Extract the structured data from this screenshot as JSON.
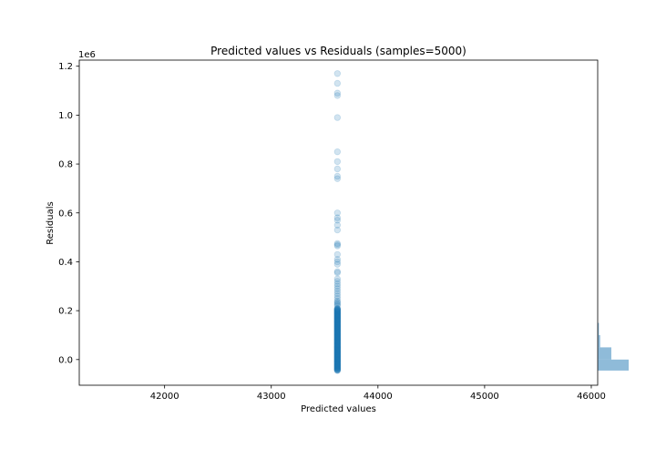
{
  "chart_data": {
    "type": "scatter",
    "title": "Predicted values vs Residuals (samples=5000)",
    "xlabel": "Predicted values",
    "ylabel": "Residuals",
    "y_offset_label": "1e6",
    "xlim": [
      41200,
      46060
    ],
    "ylim": [
      -0.105,
      1.225
    ],
    "x_scale_units": 1,
    "y_scale_units": 1000000,
    "x_ticks": [
      42000,
      43000,
      44000,
      45000,
      46000
    ],
    "y_ticks": [
      0.0,
      0.2,
      0.4,
      0.6,
      0.8,
      1.0,
      1.2
    ],
    "x_tick_labels": [
      "42000",
      "43000",
      "44000",
      "45000",
      "46000"
    ],
    "y_tick_labels": [
      "0.0",
      "0.2",
      "0.4",
      "0.6",
      "0.8",
      "1.0",
      "1.2"
    ],
    "grid": false,
    "point_color": "#1f77b4",
    "point_alpha": 0.2,
    "series": [
      {
        "x_constant": 43620,
        "residual_outliers_1e6": [
          1.17,
          1.13,
          1.09,
          1.08,
          0.99,
          0.85,
          0.81,
          0.78,
          0.75,
          0.74,
          0.6,
          0.58,
          0.57,
          0.55,
          0.53,
          0.475,
          0.47,
          0.465,
          0.43,
          0.41,
          0.4,
          0.39,
          0.36,
          0.355,
          0.33,
          0.32,
          0.31,
          0.3,
          0.29,
          0.28,
          0.27,
          0.26,
          0.25,
          0.24,
          0.235,
          0.23,
          0.225,
          0.22
        ],
        "dense_range_1e6": [
          -0.045,
          0.21
        ]
      }
    ],
    "marginal_histogram": {
      "color": "#1f77b4",
      "alpha": 0.5,
      "bins": [
        {
          "from": -0.045,
          "to": 0.0,
          "count": 1.0
        },
        {
          "from": 0.0,
          "to": 0.05,
          "count": 0.44
        },
        {
          "from": 0.05,
          "to": 0.1,
          "count": 0.08
        },
        {
          "from": 0.1,
          "to": 0.15,
          "count": 0.04
        }
      ]
    }
  }
}
